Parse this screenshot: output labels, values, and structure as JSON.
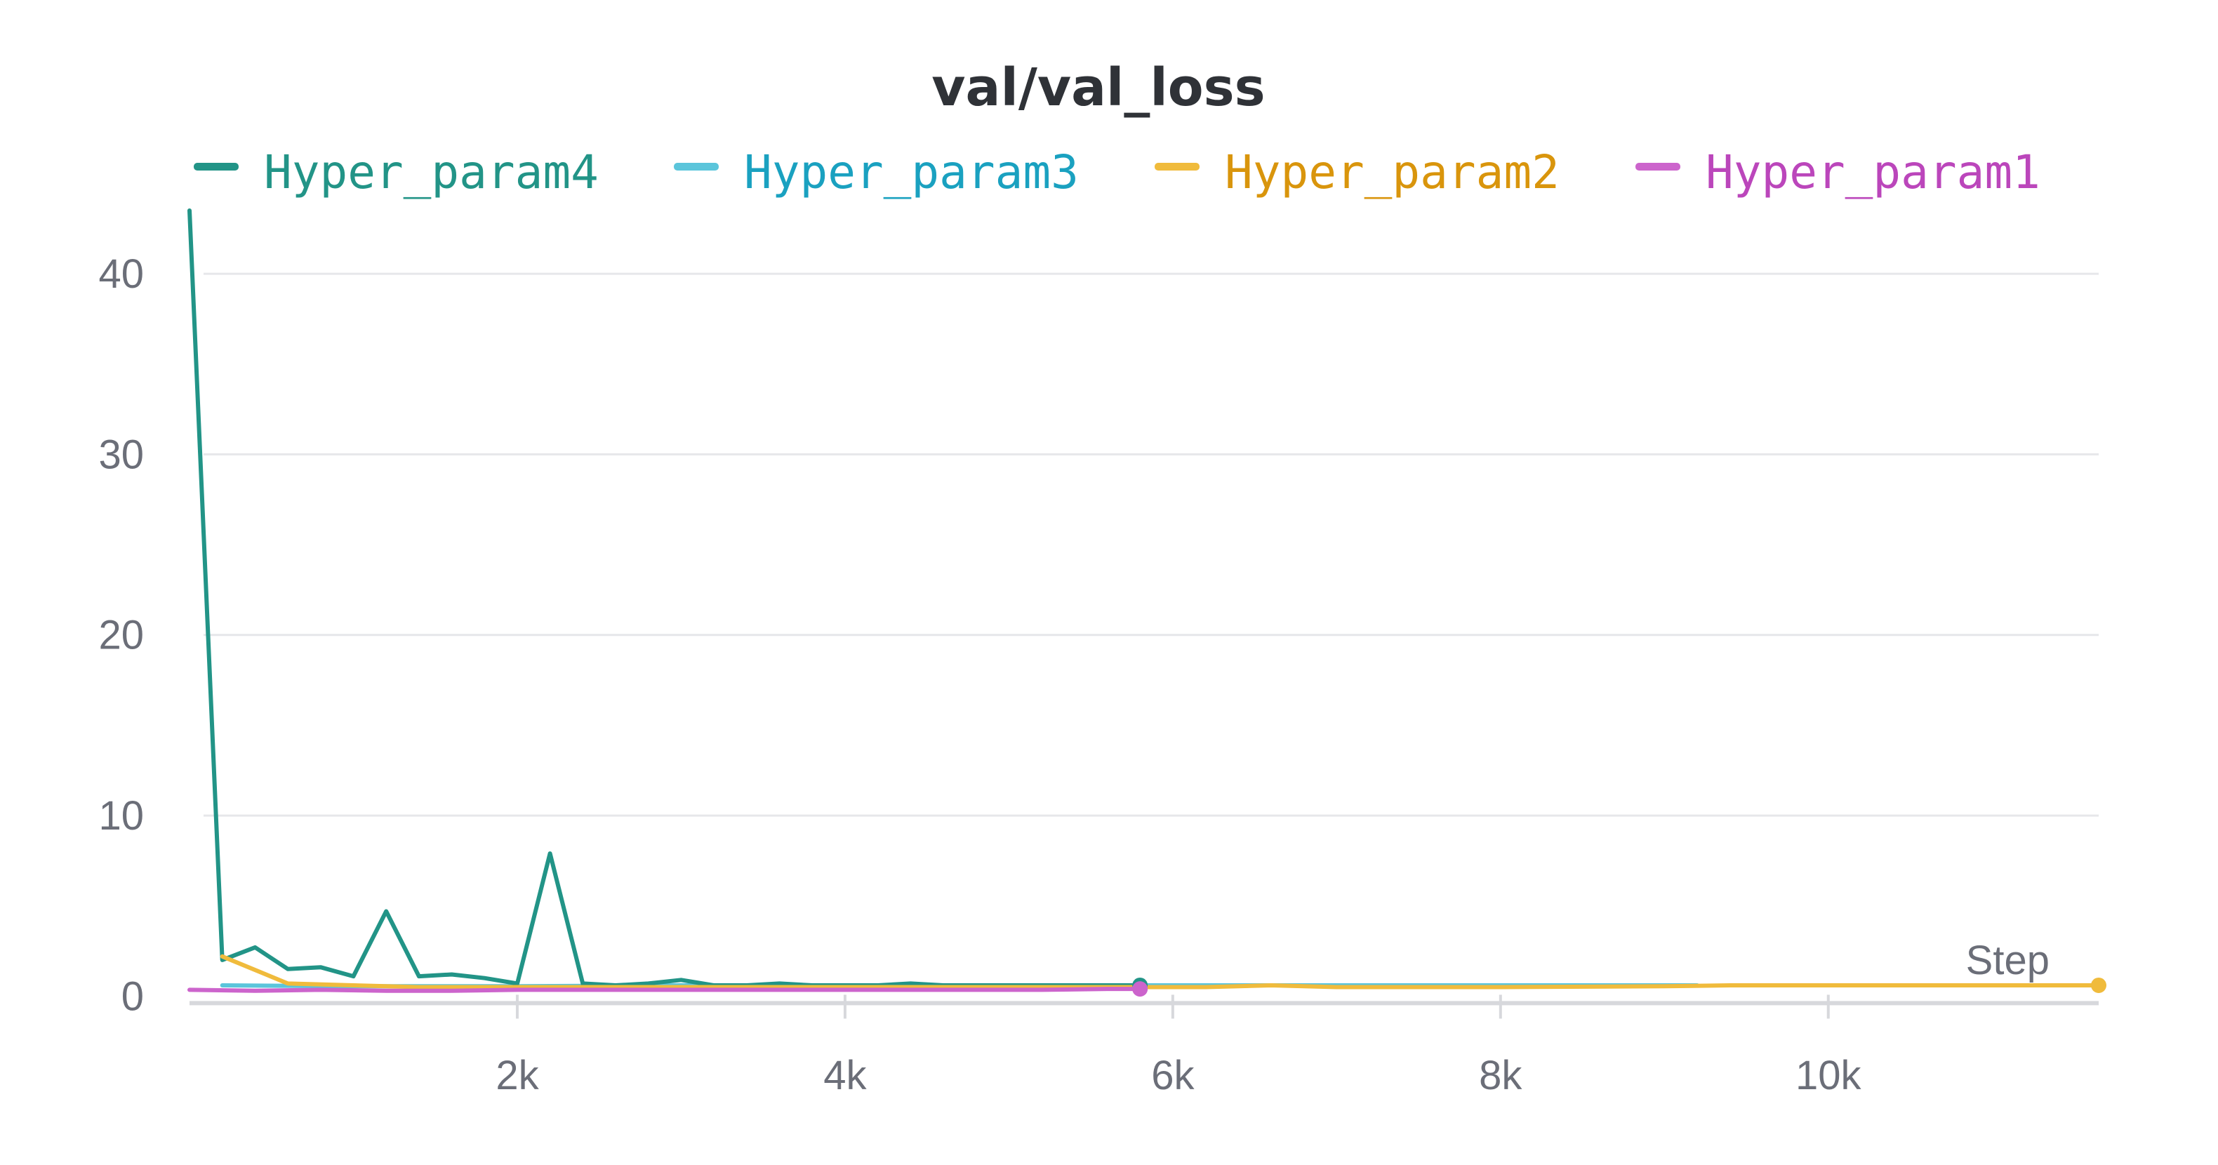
{
  "chart_data": {
    "type": "line",
    "title": "val/val_loss",
    "xlabel": "Step",
    "ylabel": "",
    "xlim": [
      0,
      11650
    ],
    "ylim": [
      -0.8,
      43.5
    ],
    "x_ticks": [
      {
        "value": 2000,
        "label": "2k"
      },
      {
        "value": 4000,
        "label": "4k"
      },
      {
        "value": 6000,
        "label": "6k"
      },
      {
        "value": 8000,
        "label": "8k"
      },
      {
        "value": 10000,
        "label": "10k"
      }
    ],
    "y_ticks": [
      {
        "value": 0,
        "label": "0"
      },
      {
        "value": 10,
        "label": "10"
      },
      {
        "value": 20,
        "label": "20"
      },
      {
        "value": 30,
        "label": "30"
      },
      {
        "value": 40,
        "label": "40"
      }
    ],
    "grid": true,
    "legend_position": "top",
    "series": [
      {
        "name": "Hyper_param4",
        "color": "#229487",
        "legend_text_color": "#229487",
        "x": [
          0,
          200,
          400,
          600,
          800,
          1000,
          1200,
          1400,
          1600,
          1800,
          2000,
          2200,
          2400,
          2600,
          2800,
          3000,
          3200,
          3400,
          3600,
          3800,
          4000,
          4200,
          4400,
          4600,
          4800,
          5000,
          5200,
          5400,
          5600,
          5800
        ],
        "y": [
          43.5,
          2.0,
          2.7,
          1.5,
          1.6,
          1.1,
          4.7,
          1.1,
          1.2,
          1.0,
          0.7,
          7.9,
          0.7,
          0.6,
          0.7,
          0.9,
          0.6,
          0.6,
          0.7,
          0.6,
          0.6,
          0.6,
          0.7,
          0.6,
          0.6,
          0.6,
          0.6,
          0.6,
          0.6,
          0.6
        ],
        "end_marker": true
      },
      {
        "name": "Hyper_param3",
        "color": "#5bc5db",
        "legend_text_color": "#1aa1c0",
        "x": [
          200,
          1000,
          2000,
          3000,
          4000,
          5000,
          6000,
          7000,
          8000,
          9000,
          9200
        ],
        "y": [
          0.6,
          0.55,
          0.55,
          0.6,
          0.6,
          0.6,
          0.6,
          0.6,
          0.6,
          0.6,
          0.6
        ],
        "end_marker": false
      },
      {
        "name": "Hyper_param2",
        "color": "#f0bb3c",
        "legend_text_color": "#d9950c",
        "x": [
          200,
          600,
          1000,
          1400,
          2000,
          2600,
          3000,
          3600,
          4000,
          5000,
          5800,
          6200,
          6600,
          7000,
          8000,
          9000,
          9400,
          10000,
          10600,
          11000,
          11650
        ],
        "y": [
          2.2,
          0.7,
          0.6,
          0.5,
          0.5,
          0.5,
          0.5,
          0.5,
          0.5,
          0.5,
          0.5,
          0.5,
          0.6,
          0.5,
          0.5,
          0.55,
          0.6,
          0.6,
          0.6,
          0.6,
          0.6
        ],
        "end_marker": true
      },
      {
        "name": "Hyper_param1",
        "color": "#cc64cc",
        "legend_text_color": "#bb46bb",
        "x": [
          0,
          400,
          800,
          1200,
          1600,
          2000,
          2400,
          2800,
          3200,
          3600,
          4000,
          4400,
          4800,
          5200,
          5600,
          5800
        ],
        "y": [
          0.35,
          0.3,
          0.35,
          0.3,
          0.3,
          0.35,
          0.35,
          0.35,
          0.35,
          0.35,
          0.35,
          0.35,
          0.35,
          0.35,
          0.4,
          0.4
        ],
        "end_marker": true
      }
    ]
  }
}
